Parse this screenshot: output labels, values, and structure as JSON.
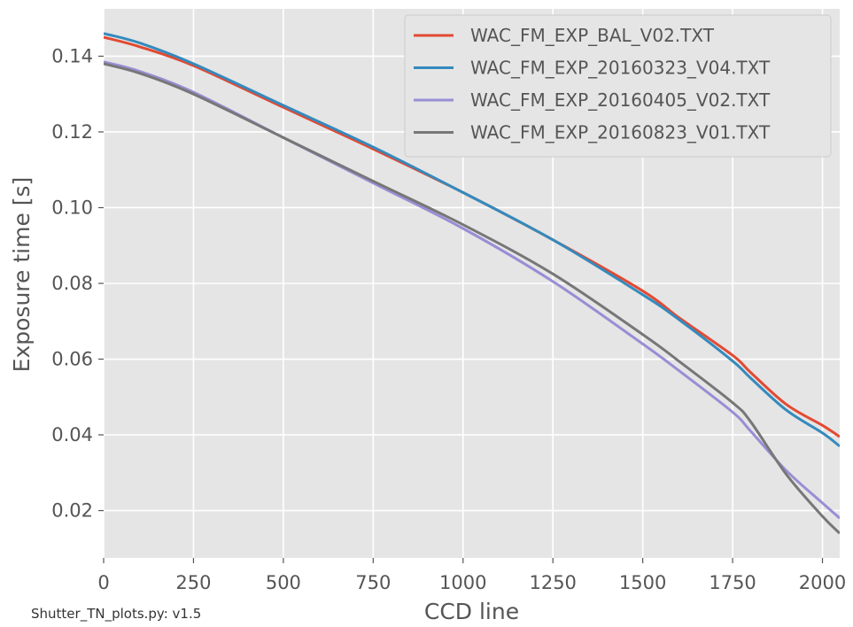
{
  "chart_data": {
    "type": "line",
    "title": "",
    "xlabel": "CCD line",
    "ylabel": "Exposure time [s]",
    "xlim": [
      0,
      2048
    ],
    "ylim": [
      0.0075,
      0.1525
    ],
    "xticks": [
      0,
      250,
      500,
      750,
      1000,
      1250,
      1500,
      1750,
      2000
    ],
    "yticks": [
      0.02,
      0.04,
      0.06,
      0.08,
      0.1,
      0.12,
      0.14
    ],
    "grid": true,
    "legend_position": "top-right",
    "x": [
      0,
      100,
      250,
      500,
      750,
      1000,
      1250,
      1500,
      1600,
      1750,
      1800,
      1900,
      2000,
      2048
    ],
    "series": [
      {
        "name": "WAC_FM_EXP_BAL_V02.TXT",
        "color": "#e24a33",
        "values": [
          0.145,
          0.1425,
          0.1375,
          0.1265,
          0.1155,
          0.104,
          0.0915,
          0.078,
          0.071,
          0.061,
          0.0565,
          0.048,
          0.0425,
          0.0395
        ]
      },
      {
        "name": "WAC_FM_EXP_20160323_V04.TXT",
        "color": "#348abd",
        "values": [
          0.146,
          0.1435,
          0.138,
          0.127,
          0.116,
          0.104,
          0.0915,
          0.077,
          0.0705,
          0.0595,
          0.055,
          0.0465,
          0.0405,
          0.037
        ]
      },
      {
        "name": "WAC_FM_EXP_20160405_V02.TXT",
        "color": "#988ed5",
        "values": [
          0.1385,
          0.136,
          0.1305,
          0.1185,
          0.1065,
          0.0945,
          0.0805,
          0.064,
          0.057,
          0.046,
          0.041,
          0.0305,
          0.022,
          0.018
        ]
      },
      {
        "name": "WAC_FM_EXP_20160823_V01.TXT",
        "color": "#777777",
        "values": [
          0.138,
          0.1355,
          0.13,
          0.1185,
          0.107,
          0.0955,
          0.0825,
          0.0665,
          0.0595,
          0.0485,
          0.0435,
          0.0295,
          0.0185,
          0.014
        ]
      }
    ]
  },
  "footer": {
    "script_version": "Shutter_TN_plots.py: v1.5"
  }
}
